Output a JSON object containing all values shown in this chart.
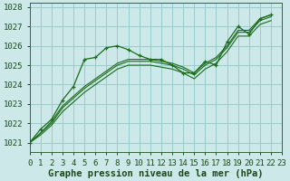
{
  "title": "Graphe pression niveau de la mer (hPa)",
  "background_color": "#cce8e8",
  "grid_color": "#99cccc",
  "line_color": "#1a6b1a",
  "xlim": [
    0,
    23
  ],
  "ylim": [
    1020.5,
    1028.2
  ],
  "yticks": [
    1021,
    1022,
    1023,
    1024,
    1025,
    1026,
    1027,
    1028
  ],
  "xticks": [
    0,
    1,
    2,
    3,
    4,
    5,
    6,
    7,
    8,
    9,
    10,
    11,
    12,
    13,
    14,
    15,
    16,
    17,
    18,
    19,
    20,
    21,
    22,
    23
  ],
  "series": [
    [
      1021.0,
      1021.7,
      1022.2,
      1023.2,
      1023.9,
      1025.3,
      1025.4,
      1025.9,
      1026.0,
      1025.8,
      1025.5,
      1025.3,
      1025.3,
      1025.0,
      1024.6,
      1024.6,
      1025.2,
      1025.0,
      1026.2,
      1027.0,
      1026.6,
      1027.4,
      1027.6
    ],
    [
      1021.0,
      1021.5,
      1022.1,
      1022.9,
      1023.4,
      1023.9,
      1024.3,
      1024.7,
      1025.1,
      1025.3,
      1025.3,
      1025.3,
      1025.2,
      1025.1,
      1024.9,
      1024.6,
      1025.1,
      1025.4,
      1026.0,
      1026.8,
      1026.8,
      1027.4,
      1027.6
    ],
    [
      1021.0,
      1021.5,
      1022.0,
      1022.8,
      1023.3,
      1023.8,
      1024.2,
      1024.6,
      1025.0,
      1025.2,
      1025.2,
      1025.2,
      1025.1,
      1025.0,
      1024.8,
      1024.5,
      1025.0,
      1025.3,
      1025.9,
      1026.7,
      1026.7,
      1027.3,
      1027.5
    ],
    [
      1021.0,
      1021.4,
      1021.9,
      1022.6,
      1023.1,
      1023.6,
      1024.0,
      1024.4,
      1024.8,
      1025.0,
      1025.0,
      1025.0,
      1024.9,
      1024.8,
      1024.6,
      1024.3,
      1024.8,
      1025.1,
      1025.7,
      1026.5,
      1026.5,
      1027.1,
      1027.3
    ]
  ],
  "marker_series_idx": 0,
  "tick_label_fontsize": 6.5,
  "title_fontsize": 7.5
}
